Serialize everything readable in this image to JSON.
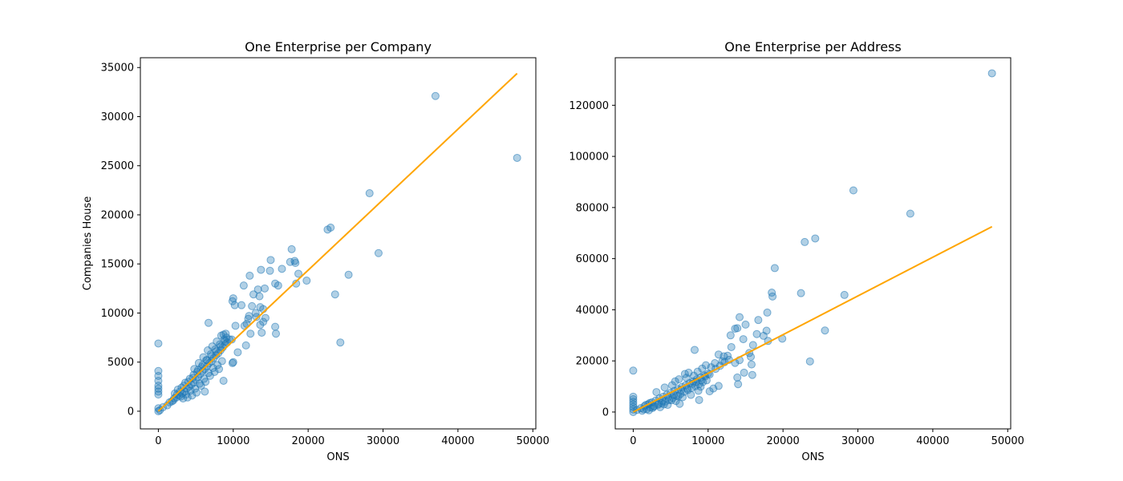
{
  "chart_data": [
    {
      "type": "scatter",
      "title": "One Enterprise per Company",
      "xlabel": "ONS",
      "ylabel": "Companies House",
      "xlim": [
        -2400,
        50400
      ],
      "ylim": [
        -1800,
        36000
      ],
      "xticks": [
        0,
        10000,
        20000,
        30000,
        40000,
        50000
      ],
      "yticks": [
        0,
        5000,
        10000,
        15000,
        20000,
        25000,
        30000,
        35000
      ],
      "xtick_labels": [
        "0",
        "10000",
        "20000",
        "30000",
        "40000",
        "50000"
      ],
      "ytick_labels": [
        "0",
        "5000",
        "10000",
        "15000",
        "20000",
        "25000",
        "30000",
        "35000"
      ],
      "point_color": "#1f77b4",
      "fit_color": "#ffa500",
      "fit_line": {
        "x": [
          0,
          47900
        ],
        "y": [
          0,
          34400
        ]
      },
      "points": [
        [
          37000,
          32100
        ],
        [
          47900,
          25800
        ],
        [
          28200,
          22200
        ],
        [
          22600,
          18500
        ],
        [
          23000,
          18700
        ],
        [
          29400,
          16100
        ],
        [
          25400,
          13900
        ],
        [
          23600,
          11900
        ],
        [
          24300,
          7000
        ],
        [
          17800,
          16500
        ],
        [
          15000,
          15400
        ],
        [
          17600,
          15200
        ],
        [
          18300,
          15100
        ],
        [
          18200,
          15300
        ],
        [
          16500,
          14500
        ],
        [
          13700,
          14400
        ],
        [
          14900,
          14300
        ],
        [
          12200,
          13800
        ],
        [
          15600,
          13000
        ],
        [
          16000,
          12800
        ],
        [
          19800,
          13300
        ],
        [
          18700,
          14000
        ],
        [
          18400,
          13000
        ],
        [
          11400,
          12800
        ],
        [
          14200,
          12500
        ],
        [
          13300,
          12400
        ],
        [
          12700,
          11900
        ],
        [
          13500,
          11700
        ],
        [
          13600,
          10600
        ],
        [
          12500,
          10700
        ],
        [
          11100,
          10800
        ],
        [
          14000,
          10400
        ],
        [
          13000,
          10000
        ],
        [
          13100,
          9600
        ],
        [
          12100,
          9700
        ],
        [
          12000,
          9400
        ],
        [
          14300,
          9500
        ],
        [
          14000,
          9100
        ],
        [
          13600,
          8800
        ],
        [
          15600,
          8600
        ],
        [
          13800,
          8000
        ],
        [
          15700,
          7900
        ],
        [
          11800,
          8900
        ],
        [
          11500,
          8700
        ],
        [
          12300,
          7900
        ],
        [
          10000,
          11500
        ],
        [
          9900,
          11200
        ],
        [
          10200,
          10800
        ],
        [
          10300,
          8700
        ],
        [
          11700,
          6700
        ],
        [
          6700,
          9000
        ],
        [
          8700,
          7800
        ],
        [
          9100,
          7500
        ],
        [
          9800,
          7300
        ],
        [
          10600,
          6000
        ],
        [
          10000,
          5000
        ],
        [
          9900,
          4900
        ],
        [
          8700,
          3100
        ],
        [
          6200,
          2000
        ],
        [
          0,
          6900
        ],
        [
          0,
          4100
        ],
        [
          0,
          3600
        ],
        [
          0,
          3100
        ],
        [
          0,
          2600
        ],
        [
          0,
          2300
        ],
        [
          0,
          2000
        ],
        [
          0,
          1700
        ],
        [
          0,
          300
        ],
        [
          0,
          0
        ],
        [
          200,
          100
        ],
        [
          600,
          400
        ],
        [
          1200,
          600
        ],
        [
          1500,
          900
        ],
        [
          2000,
          1100
        ],
        [
          2400,
          1400
        ],
        [
          2800,
          1600
        ],
        [
          3200,
          1800
        ],
        [
          3500,
          2000
        ],
        [
          3800,
          2300
        ],
        [
          4100,
          2500
        ],
        [
          4400,
          2700
        ],
        [
          4700,
          2900
        ],
        [
          5000,
          3200
        ],
        [
          5300,
          3500
        ],
        [
          5600,
          3800
        ],
        [
          5900,
          4100
        ],
        [
          6200,
          4300
        ],
        [
          6500,
          4600
        ],
        [
          6800,
          4900
        ],
        [
          7100,
          5100
        ],
        [
          7400,
          5400
        ],
        [
          7700,
          5700
        ],
        [
          8000,
          5900
        ],
        [
          8300,
          6200
        ],
        [
          8600,
          6500
        ],
        [
          8900,
          6800
        ],
        [
          9200,
          7000
        ],
        [
          9500,
          7300
        ],
        [
          2200,
          1800
        ],
        [
          2600,
          2200
        ],
        [
          3000,
          1500
        ],
        [
          3400,
          2600
        ],
        [
          3700,
          1700
        ],
        [
          4000,
          3000
        ],
        [
          4300,
          2100
        ],
        [
          4600,
          3400
        ],
        [
          4900,
          2300
        ],
        [
          5200,
          4000
        ],
        [
          5500,
          2800
        ],
        [
          5800,
          4500
        ],
        [
          6100,
          3300
        ],
        [
          6400,
          5200
        ],
        [
          6700,
          3900
        ],
        [
          7000,
          5800
        ],
        [
          7300,
          4400
        ],
        [
          7600,
          6300
        ],
        [
          7900,
          4700
        ],
        [
          8200,
          6800
        ],
        [
          8500,
          5100
        ],
        [
          8800,
          7300
        ],
        [
          3300,
          1300
        ],
        [
          3900,
          1400
        ],
        [
          4500,
          1600
        ],
        [
          5100,
          1900
        ],
        [
          5700,
          2600
        ],
        [
          6300,
          3000
        ],
        [
          6900,
          3600
        ],
        [
          7500,
          4000
        ],
        [
          8100,
          4300
        ],
        [
          4800,
          4300
        ],
        [
          5400,
          4900
        ],
        [
          6000,
          5500
        ],
        [
          6600,
          6200
        ],
        [
          7200,
          6600
        ],
        [
          7800,
          7100
        ],
        [
          8400,
          7700
        ],
        [
          9000,
          7900
        ],
        [
          1800,
          1000
        ],
        [
          2100,
          1300
        ],
        [
          2500,
          1700
        ],
        [
          2900,
          2000
        ],
        [
          3100,
          2400
        ],
        [
          3600,
          2900
        ],
        [
          4200,
          3300
        ],
        [
          4700,
          3700
        ],
        [
          5300,
          4200
        ],
        [
          5900,
          4700
        ],
        [
          6500,
          5200
        ],
        [
          7100,
          5600
        ],
        [
          7700,
          6100
        ],
        [
          8300,
          6600
        ],
        [
          8900,
          7100
        ]
      ]
    },
    {
      "type": "scatter",
      "title": "One Enterprise per Address",
      "xlabel": "ONS",
      "ylabel": "",
      "xlim": [
        -2400,
        50400
      ],
      "ylim": [
        -6600,
        138600
      ],
      "xticks": [
        0,
        10000,
        20000,
        30000,
        40000,
        50000
      ],
      "yticks": [
        0,
        20000,
        40000,
        60000,
        80000,
        100000,
        120000
      ],
      "xtick_labels": [
        "0",
        "10000",
        "20000",
        "30000",
        "40000",
        "50000"
      ],
      "ytick_labels": [
        "0",
        "20000",
        "40000",
        "60000",
        "80000",
        "100000",
        "120000"
      ],
      "point_color": "#1f77b4",
      "fit_color": "#ffa500",
      "fit_line": {
        "x": [
          0,
          47900
        ],
        "y": [
          0,
          72500
        ]
      },
      "points": [
        [
          47900,
          132500
        ],
        [
          29400,
          86700
        ],
        [
          37000,
          77600
        ],
        [
          24300,
          67900
        ],
        [
          22900,
          66500
        ],
        [
          18900,
          56300
        ],
        [
          18500,
          46700
        ],
        [
          18600,
          45200
        ],
        [
          22400,
          46500
        ],
        [
          28200,
          45800
        ],
        [
          17900,
          38900
        ],
        [
          14200,
          37100
        ],
        [
          16700,
          36000
        ],
        [
          15000,
          34200
        ],
        [
          17800,
          31800
        ],
        [
          25600,
          31900
        ],
        [
          13600,
          32600
        ],
        [
          13900,
          32800
        ],
        [
          13000,
          30000
        ],
        [
          17400,
          29800
        ],
        [
          16500,
          30500
        ],
        [
          14700,
          28500
        ],
        [
          18000,
          27800
        ],
        [
          19900,
          28700
        ],
        [
          23600,
          19800
        ],
        [
          13100,
          25400
        ],
        [
          15500,
          23100
        ],
        [
          16000,
          26200
        ],
        [
          15700,
          21600
        ],
        [
          14200,
          20300
        ],
        [
          12100,
          21800
        ],
        [
          11400,
          22500
        ],
        [
          12600,
          22000
        ],
        [
          11900,
          19900
        ],
        [
          13600,
          19200
        ],
        [
          15800,
          18600
        ],
        [
          14800,
          15400
        ],
        [
          15900,
          14500
        ],
        [
          13900,
          13500
        ],
        [
          14000,
          10900
        ],
        [
          11400,
          10200
        ],
        [
          10700,
          9200
        ],
        [
          10200,
          8100
        ],
        [
          8200,
          24300
        ],
        [
          8800,
          4700
        ],
        [
          6200,
          3200
        ],
        [
          0,
          16200
        ],
        [
          0,
          6000
        ],
        [
          0,
          5000
        ],
        [
          0,
          4000
        ],
        [
          0,
          3000
        ],
        [
          0,
          2000
        ],
        [
          0,
          1000
        ],
        [
          0,
          0
        ],
        [
          500,
          800
        ],
        [
          1000,
          1500
        ],
        [
          1500,
          2300
        ],
        [
          2000,
          3000
        ],
        [
          2500,
          3800
        ],
        [
          3000,
          4500
        ],
        [
          3500,
          5300
        ],
        [
          4000,
          6000
        ],
        [
          4500,
          6800
        ],
        [
          5000,
          7500
        ],
        [
          5500,
          8300
        ],
        [
          6000,
          9000
        ],
        [
          6500,
          9800
        ],
        [
          7000,
          10500
        ],
        [
          7500,
          11300
        ],
        [
          8000,
          12000
        ],
        [
          8500,
          12800
        ],
        [
          9000,
          13500
        ],
        [
          9500,
          14300
        ],
        [
          10000,
          15000
        ],
        [
          1200,
          500
        ],
        [
          1800,
          1100
        ],
        [
          2300,
          1800
        ],
        [
          2800,
          2300
        ],
        [
          3300,
          2800
        ],
        [
          3800,
          3500
        ],
        [
          4300,
          4100
        ],
        [
          4800,
          4700
        ],
        [
          5300,
          5500
        ],
        [
          5800,
          6300
        ],
        [
          6300,
          7000
        ],
        [
          6800,
          7900
        ],
        [
          7300,
          8600
        ],
        [
          7800,
          9400
        ],
        [
          8300,
          10100
        ],
        [
          8800,
          10900
        ],
        [
          9300,
          11700
        ],
        [
          9800,
          12400
        ],
        [
          3100,
          7800
        ],
        [
          4200,
          9600
        ],
        [
          5200,
          10500
        ],
        [
          6100,
          12800
        ],
        [
          6900,
          14900
        ],
        [
          7400,
          15400
        ],
        [
          8600,
          15800
        ],
        [
          9200,
          17000
        ],
        [
          9700,
          18300
        ],
        [
          10400,
          17500
        ],
        [
          10900,
          19100
        ],
        [
          5600,
          12000
        ],
        [
          7100,
          13400
        ],
        [
          8100,
          14200
        ],
        [
          9000,
          9900
        ],
        [
          4600,
          2800
        ],
        [
          5700,
          4300
        ],
        [
          6600,
          5800
        ],
        [
          7700,
          6700
        ],
        [
          8700,
          8300
        ],
        [
          3600,
          1900
        ],
        [
          2100,
          700
        ],
        [
          2600,
          1600
        ],
        [
          3900,
          4400
        ],
        [
          4700,
          5900
        ],
        [
          5100,
          4600
        ],
        [
          6000,
          6100
        ],
        [
          6400,
          8700
        ],
        [
          7200,
          9200
        ],
        [
          7900,
          11000
        ],
        [
          8400,
          11800
        ],
        [
          9100,
          12400
        ],
        [
          9600,
          13900
        ],
        [
          10200,
          14700
        ],
        [
          11000,
          16900
        ],
        [
          11600,
          18100
        ],
        [
          12200,
          19500
        ],
        [
          12800,
          20400
        ],
        [
          1400,
          1100
        ],
        [
          1700,
          2800
        ],
        [
          2200,
          3500
        ],
        [
          2700,
          2100
        ],
        [
          3400,
          3200
        ],
        [
          4100,
          3000
        ],
        [
          5400,
          6700
        ]
      ]
    }
  ]
}
